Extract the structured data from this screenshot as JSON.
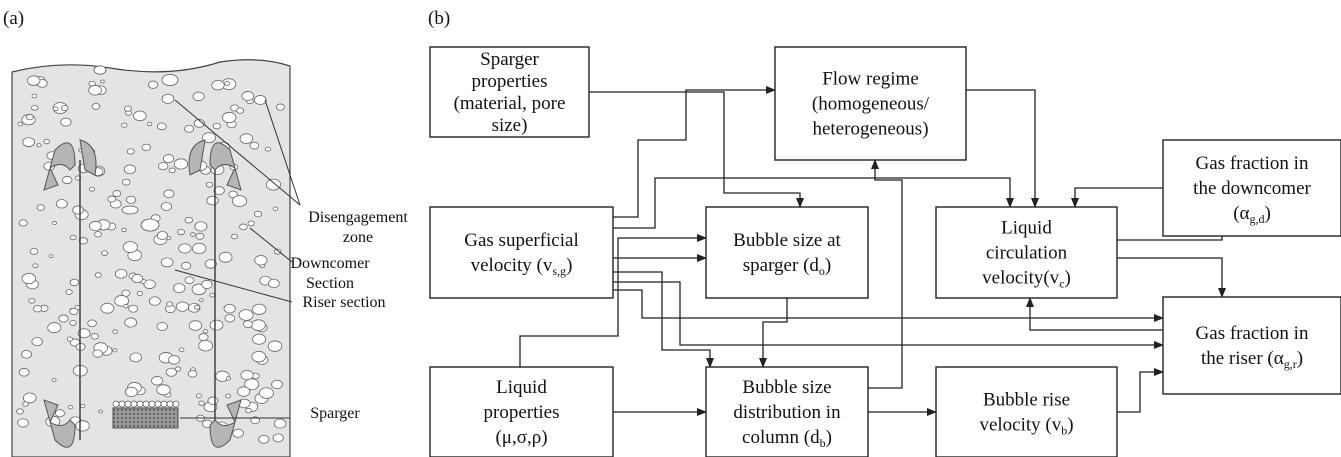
{
  "panel_a": {
    "label": "(a)",
    "annotations": [
      {
        "lines": [
          "Disengagement",
          "zone"
        ]
      },
      {
        "lines": [
          "Downcomer",
          "Section"
        ]
      },
      {
        "lines": [
          "Riser section"
        ]
      },
      {
        "lines": [
          "Sparger"
        ]
      }
    ]
  },
  "panel_b": {
    "label": "(b)",
    "nodes": [
      {
        "lines": [
          [
            "Sparger"
          ],
          [
            "properties"
          ],
          [
            "(material, pore"
          ],
          [
            "size)"
          ]
        ]
      },
      {
        "lines": [
          [
            "Flow regime"
          ],
          [
            "(homogeneous/"
          ],
          [
            "heterogeneous)"
          ]
        ]
      },
      {
        "lines": [
          [
            "Gas fraction in"
          ],
          [
            "the downcomer"
          ],
          [
            "(α",
            "g,d",
            ")"
          ]
        ]
      },
      {
        "lines": [
          [
            "Gas superficial"
          ],
          [
            "velocity (v",
            "s,g",
            ")"
          ]
        ]
      },
      {
        "lines": [
          [
            "Bubble size at"
          ],
          [
            "sparger (d",
            "o",
            ")"
          ]
        ]
      },
      {
        "lines": [
          [
            "Liquid"
          ],
          [
            "circulation"
          ],
          [
            "velocity(v",
            "c",
            ")"
          ]
        ]
      },
      {
        "lines": [
          [
            "Gas fraction in"
          ],
          [
            "the riser (α",
            "g,r",
            ")"
          ]
        ]
      },
      {
        "lines": [
          [
            "Liquid"
          ],
          [
            "properties"
          ],
          [
            "(μ,σ,ρ)"
          ]
        ]
      },
      {
        "lines": [
          [
            "Bubble size"
          ],
          [
            "distribution in"
          ],
          [
            "column (d",
            "b",
            ")"
          ]
        ]
      },
      {
        "lines": [
          [
            "Bubble rise"
          ],
          [
            "velocity (v",
            "b",
            ")"
          ]
        ]
      }
    ]
  }
}
